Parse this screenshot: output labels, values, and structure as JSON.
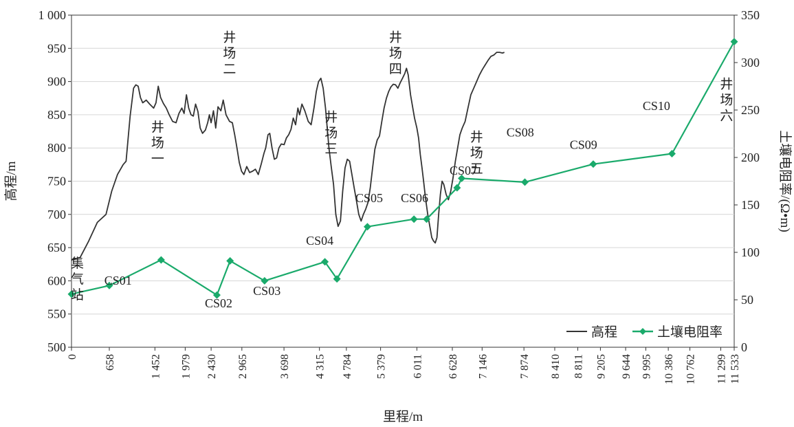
{
  "chart_data": {
    "type": "line",
    "xlabel": "里程/m",
    "ylabel_left": "高程/m",
    "ylabel_right": "土壤电阻率/(Ω•m)",
    "x_range": [
      0,
      11533
    ],
    "ylim_left": [
      500,
      1000
    ],
    "ylim_right": [
      0,
      350
    ],
    "x_ticks": [
      {
        "value": 0,
        "label": "0"
      },
      {
        "value": 658,
        "label": "658"
      },
      {
        "value": 1452,
        "label": "1 452"
      },
      {
        "value": 1979,
        "label": "1 979"
      },
      {
        "value": 2430,
        "label": "2 430"
      },
      {
        "value": 2965,
        "label": "2 965"
      },
      {
        "value": 3698,
        "label": "3 698"
      },
      {
        "value": 4315,
        "label": "4 315"
      },
      {
        "value": 4784,
        "label": "4 784"
      },
      {
        "value": 5379,
        "label": "5 379"
      },
      {
        "value": 6011,
        "label": "6 011"
      },
      {
        "value": 6628,
        "label": "6 628"
      },
      {
        "value": 7146,
        "label": "7 146"
      },
      {
        "value": 7874,
        "label": "7 874"
      },
      {
        "value": 8410,
        "label": "8 410"
      },
      {
        "value": 8811,
        "label": "8 811"
      },
      {
        "value": 9205,
        "label": "9 205"
      },
      {
        "value": 9644,
        "label": "9 644"
      },
      {
        "value": 9995,
        "label": "9 995"
      },
      {
        "value": 10386,
        "label": "10 386"
      },
      {
        "value": 10762,
        "label": "10 762"
      },
      {
        "value": 11299,
        "label": "11 299"
      },
      {
        "value": 11533,
        "label": "11 533"
      }
    ],
    "y_left_ticks": [
      {
        "value": 500,
        "label": "500"
      },
      {
        "value": 550,
        "label": "550"
      },
      {
        "value": 600,
        "label": "600"
      },
      {
        "value": 650,
        "label": "650"
      },
      {
        "value": 700,
        "label": "700"
      },
      {
        "value": 750,
        "label": "750"
      },
      {
        "value": 800,
        "label": "800"
      },
      {
        "value": 850,
        "label": "850"
      },
      {
        "value": 900,
        "label": "900"
      },
      {
        "value": 950,
        "label": "950"
      },
      {
        "value": 1000,
        "label": "1 000"
      }
    ],
    "y_right_ticks": [
      {
        "value": 0,
        "label": "0"
      },
      {
        "value": 50,
        "label": "50"
      },
      {
        "value": 100,
        "label": "100"
      },
      {
        "value": 150,
        "label": "150"
      },
      {
        "value": 200,
        "label": "200"
      },
      {
        "value": 250,
        "label": "250"
      },
      {
        "value": 300,
        "label": "300"
      },
      {
        "value": 350,
        "label": "350"
      }
    ],
    "series": [
      {
        "name": "高程",
        "axis": "left",
        "color": "#333333",
        "points": [
          [
            0,
            632
          ],
          [
            150,
            635
          ],
          [
            300,
            660
          ],
          [
            450,
            688
          ],
          [
            600,
            700
          ],
          [
            700,
            735
          ],
          [
            800,
            760
          ],
          [
            900,
            775
          ],
          [
            950,
            780
          ],
          [
            1020,
            848
          ],
          [
            1080,
            890
          ],
          [
            1120,
            895
          ],
          [
            1160,
            893
          ],
          [
            1200,
            876
          ],
          [
            1240,
            868
          ],
          [
            1300,
            872
          ],
          [
            1360,
            866
          ],
          [
            1430,
            860
          ],
          [
            1470,
            868
          ],
          [
            1510,
            893
          ],
          [
            1550,
            876
          ],
          [
            1600,
            867
          ],
          [
            1650,
            860
          ],
          [
            1700,
            850
          ],
          [
            1760,
            840
          ],
          [
            1820,
            838
          ],
          [
            1870,
            852
          ],
          [
            1920,
            860
          ],
          [
            1960,
            852
          ],
          [
            2000,
            880
          ],
          [
            2040,
            860
          ],
          [
            2080,
            850
          ],
          [
            2120,
            848
          ],
          [
            2160,
            866
          ],
          [
            2200,
            855
          ],
          [
            2240,
            830
          ],
          [
            2280,
            822
          ],
          [
            2330,
            827
          ],
          [
            2370,
            838
          ],
          [
            2400,
            850
          ],
          [
            2430,
            838
          ],
          [
            2470,
            856
          ],
          [
            2510,
            830
          ],
          [
            2550,
            862
          ],
          [
            2600,
            856
          ],
          [
            2640,
            872
          ],
          [
            2690,
            850
          ],
          [
            2750,
            840
          ],
          [
            2800,
            838
          ],
          [
            2840,
            820
          ],
          [
            2880,
            800
          ],
          [
            2920,
            778
          ],
          [
            2960,
            765
          ],
          [
            3000,
            760
          ],
          [
            3050,
            772
          ],
          [
            3100,
            763
          ],
          [
            3150,
            765
          ],
          [
            3200,
            768
          ],
          [
            3250,
            760
          ],
          [
            3300,
            775
          ],
          [
            3350,
            792
          ],
          [
            3380,
            800
          ],
          [
            3420,
            820
          ],
          [
            3450,
            822
          ],
          [
            3490,
            800
          ],
          [
            3530,
            783
          ],
          [
            3570,
            785
          ],
          [
            3610,
            800
          ],
          [
            3650,
            806
          ],
          [
            3700,
            805
          ],
          [
            3740,
            815
          ],
          [
            3780,
            820
          ],
          [
            3820,
            828
          ],
          [
            3860,
            845
          ],
          [
            3900,
            835
          ],
          [
            3940,
            860
          ],
          [
            3970,
            850
          ],
          [
            4010,
            866
          ],
          [
            4060,
            856
          ],
          [
            4120,
            840
          ],
          [
            4170,
            835
          ],
          [
            4220,
            860
          ],
          [
            4260,
            885
          ],
          [
            4300,
            900
          ],
          [
            4340,
            905
          ],
          [
            4380,
            890
          ],
          [
            4420,
            860
          ],
          [
            4450,
            830
          ],
          [
            4480,
            800
          ],
          [
            4520,
            772
          ],
          [
            4560,
            745
          ],
          [
            4600,
            700
          ],
          [
            4640,
            682
          ],
          [
            4680,
            690
          ],
          [
            4720,
            735
          ],
          [
            4760,
            770
          ],
          [
            4800,
            783
          ],
          [
            4840,
            780
          ],
          [
            4880,
            760
          ],
          [
            4920,
            740
          ],
          [
            4960,
            720
          ],
          [
            5000,
            700
          ],
          [
            5040,
            690
          ],
          [
            5080,
            700
          ],
          [
            5120,
            708
          ],
          [
            5160,
            718
          ],
          [
            5200,
            740
          ],
          [
            5240,
            770
          ],
          [
            5280,
            798
          ],
          [
            5320,
            812
          ],
          [
            5360,
            818
          ],
          [
            5400,
            840
          ],
          [
            5440,
            860
          ],
          [
            5480,
            875
          ],
          [
            5520,
            885
          ],
          [
            5560,
            892
          ],
          [
            5600,
            896
          ],
          [
            5640,
            895
          ],
          [
            5680,
            890
          ],
          [
            5720,
            898
          ],
          [
            5760,
            905
          ],
          [
            5800,
            912
          ],
          [
            5830,
            920
          ],
          [
            5860,
            910
          ],
          [
            5900,
            880
          ],
          [
            5940,
            860
          ],
          [
            5970,
            845
          ],
          [
            6010,
            830
          ],
          [
            6040,
            815
          ],
          [
            6070,
            790
          ],
          [
            6100,
            770
          ],
          [
            6130,
            748
          ],
          [
            6160,
            725
          ],
          [
            6200,
            700
          ],
          [
            6240,
            680
          ],
          [
            6270,
            665
          ],
          [
            6300,
            660
          ],
          [
            6330,
            657
          ],
          [
            6360,
            665
          ],
          [
            6390,
            700
          ],
          [
            6420,
            730
          ],
          [
            6450,
            750
          ],
          [
            6480,
            745
          ],
          [
            6520,
            730
          ],
          [
            6560,
            722
          ],
          [
            6600,
            735
          ],
          [
            6640,
            755
          ],
          [
            6680,
            780
          ],
          [
            6720,
            800
          ],
          [
            6760,
            820
          ],
          [
            6800,
            830
          ],
          [
            6850,
            840
          ],
          [
            6900,
            860
          ],
          [
            6950,
            880
          ],
          [
            7000,
            890
          ],
          [
            7050,
            900
          ],
          [
            7100,
            910
          ],
          [
            7150,
            918
          ],
          [
            7200,
            925
          ],
          [
            7250,
            932
          ],
          [
            7300,
            938
          ],
          [
            7350,
            940
          ],
          [
            7400,
            944
          ],
          [
            7450,
            944
          ],
          [
            7500,
            943
          ],
          [
            7533,
            944
          ]
        ]
      },
      {
        "name": "土壤电阻率",
        "axis": "right",
        "color": "#1aaa6b",
        "points": [
          [
            0,
            56
          ],
          [
            658,
            65
          ],
          [
            1560,
            92
          ],
          [
            2530,
            55
          ],
          [
            2760,
            91
          ],
          [
            3360,
            70
          ],
          [
            4410,
            90
          ],
          [
            4620,
            72
          ],
          [
            5150,
            127
          ],
          [
            5960,
            135
          ],
          [
            6180,
            135
          ],
          [
            6710,
            168
          ],
          [
            6790,
            178
          ],
          [
            7890,
            174
          ],
          [
            9080,
            193
          ],
          [
            10450,
            204
          ],
          [
            11533,
            322
          ]
        ]
      }
    ],
    "annotations": [
      {
        "text": "集气站",
        "x": 100,
        "y": 620,
        "axis": "left",
        "vertical": true
      },
      {
        "text": "井场一",
        "x": 1500,
        "y": 825,
        "axis": "left",
        "vertical": true
      },
      {
        "text": "井场二",
        "x": 2750,
        "y": 960,
        "axis": "left",
        "vertical": true
      },
      {
        "text": "井场三",
        "x": 4520,
        "y": 840,
        "axis": "left",
        "vertical": true
      },
      {
        "text": "井场四",
        "x": 5640,
        "y": 960,
        "axis": "left",
        "vertical": true
      },
      {
        "text": "井场五",
        "x": 7050,
        "y": 810,
        "axis": "left",
        "vertical": true
      },
      {
        "text": "井场六",
        "x": 11400,
        "y": 890,
        "axis": "left",
        "vertical": true
      },
      {
        "text": "CS01",
        "x": 810,
        "y": 66,
        "axis": "right"
      },
      {
        "text": "CS02",
        "x": 2560,
        "y": 42,
        "axis": "right"
      },
      {
        "text": "CS03",
        "x": 3400,
        "y": 55,
        "axis": "right"
      },
      {
        "text": "CS04",
        "x": 4320,
        "y": 108,
        "axis": "right"
      },
      {
        "text": "CS05",
        "x": 5180,
        "y": 153,
        "axis": "right"
      },
      {
        "text": "CS06",
        "x": 5970,
        "y": 153,
        "axis": "right"
      },
      {
        "text": "CS07",
        "x": 6820,
        "y": 182,
        "axis": "right"
      },
      {
        "text": "CS08",
        "x": 7810,
        "y": 222,
        "axis": "right"
      },
      {
        "text": "CS09",
        "x": 8910,
        "y": 209,
        "axis": "right"
      },
      {
        "text": "CS10",
        "x": 10180,
        "y": 250,
        "axis": "right"
      }
    ],
    "legend": {
      "position": "bottom-right",
      "entries": [
        {
          "label": "高程",
          "series": 0
        },
        {
          "label": "土壤电阻率",
          "series": 1
        }
      ]
    }
  }
}
